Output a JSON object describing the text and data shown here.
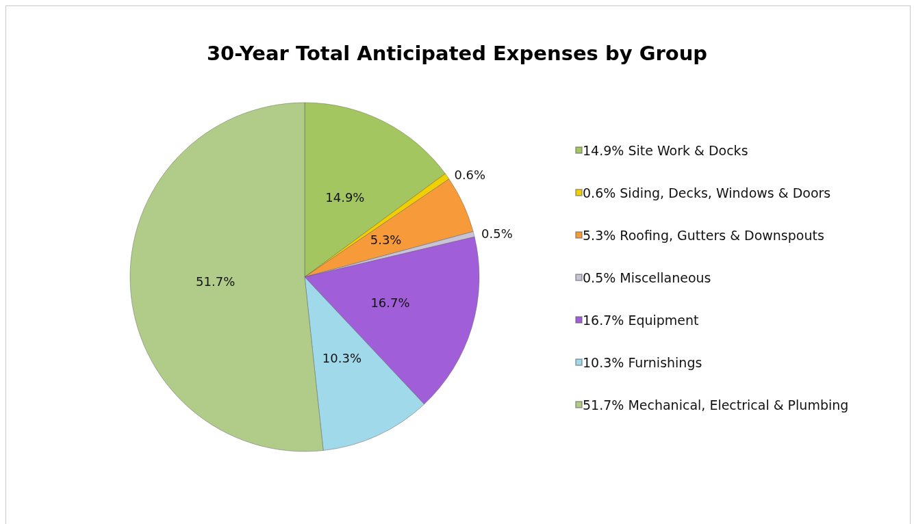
{
  "chart_data": {
    "type": "pie",
    "title": "30-Year Total Anticipated Expenses by Group",
    "categories": [
      "14.9% Site Work & Docks",
      "0.6% Siding, Decks, Windows & Doors",
      "5.3% Roofing, Gutters & Downspouts",
      "0.5% Miscellaneous",
      "16.7% Equipment",
      "10.3% Furnishings",
      "51.7% Mechanical, Electrical & Plumbing"
    ],
    "values": [
      14.9,
      0.6,
      5.3,
      0.5,
      16.7,
      10.3,
      51.7
    ],
    "colors": [
      "#a3c660",
      "#f0d000",
      "#f79a3a",
      "#c9c3d6",
      "#a05fd8",
      "#9fd9ea",
      "#b0cc88"
    ],
    "value_labels": [
      "14.9%",
      "0.6%",
      "5.3%",
      "0.5%",
      "16.7%",
      "10.3%",
      "51.7%"
    ],
    "legend": "right"
  }
}
